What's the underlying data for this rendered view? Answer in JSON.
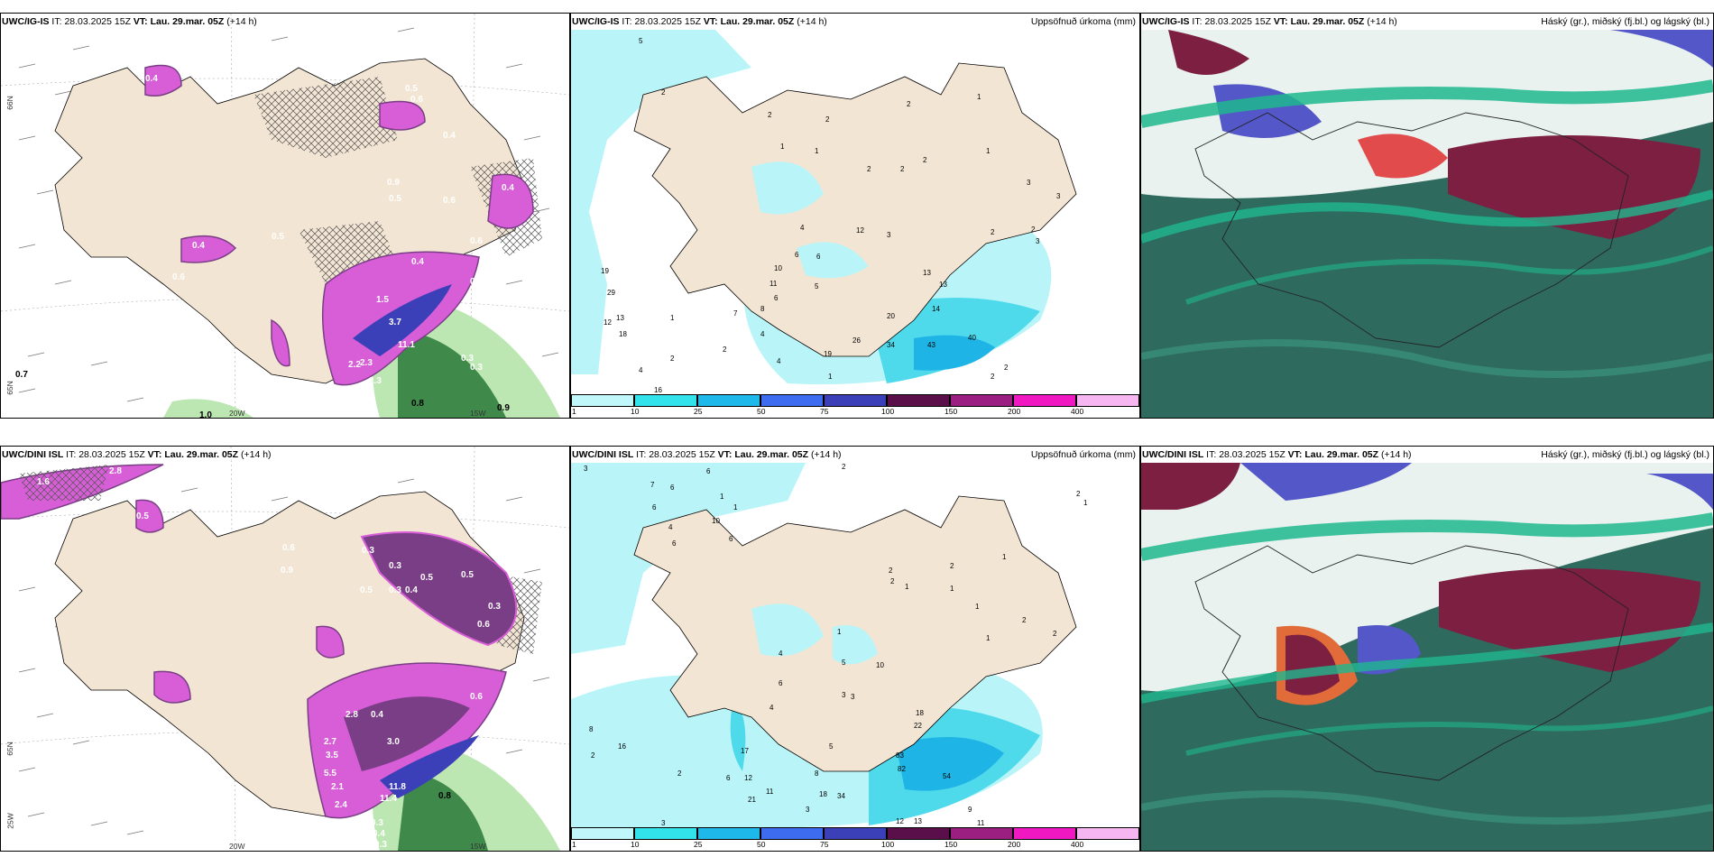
{
  "rows": [
    {
      "model": "UWC/IG-IS",
      "panels": [
        {
          "model_label": "UWC/IG-IS",
          "it_label": "IT:",
          "it_value": "28.03.2025 15Z",
          "vt_label": "VT:",
          "vt_value": "Lau. 29.mar. 05Z",
          "lead": "(+14 h)",
          "title_right": ""
        },
        {
          "model_label": "UWC/IG-IS",
          "it_label": "IT:",
          "it_value": "28.03.2025 15Z",
          "vt_label": "VT:",
          "vt_value": "Lau. 29.mar. 05Z",
          "lead": "(+14 h)",
          "title_right": "Uppsöfnuð úrkoma (mm)"
        },
        {
          "model_label": "UWC/IG-IS",
          "it_label": "IT:",
          "it_value": "28.03.2025 15Z",
          "vt_label": "VT:",
          "vt_value": "Lau. 29.mar. 05Z",
          "lead": "(+14 h)",
          "title_right": "Háský (gr.), miðský (fj.bl.) og lágský (bl.)"
        }
      ]
    },
    {
      "model": "UWC/DINI ISL",
      "panels": [
        {
          "model_label": "UWC/DINI ISL",
          "it_label": "IT:",
          "it_value": "28.03.2025 15Z",
          "vt_label": "VT:",
          "vt_value": "Lau. 29.mar. 05Z",
          "lead": "(+14 h)",
          "title_right": ""
        },
        {
          "model_label": "UWC/DINI ISL",
          "it_label": "IT:",
          "it_value": "28.03.2025 15Z",
          "vt_label": "VT:",
          "vt_value": "Lau. 29.mar. 05Z",
          "lead": "(+14 h)",
          "title_right": "Uppsöfnuð úrkoma (mm)"
        },
        {
          "model_label": "UWC/DINI ISL",
          "it_label": "IT:",
          "it_value": "28.03.2025 15Z",
          "vt_label": "VT:",
          "vt_value": "Lau. 29.mar. 05Z",
          "lead": "(+14 h)",
          "title_right": "Háský (gr.), miðský (fj.bl.) og lágský (bl.)"
        }
      ]
    }
  ],
  "grid_labels": {
    "lat_66": "66N",
    "lat_65": "65N",
    "lon_20": "20W",
    "lon_15": "15W",
    "lon_25": "25W"
  },
  "colorbar": {
    "labels": [
      "1",
      "10",
      "25",
      "50",
      "75",
      "100",
      "150",
      "200",
      "400"
    ],
    "colors": [
      "#bff7fa",
      "#33e3ec",
      "#1fb8ea",
      "#3d6cf0",
      "#3b3fb8",
      "#5a0f4a",
      "#9b1f80",
      "#f018c0",
      "#f6b6f2"
    ]
  },
  "map_colors": {
    "land": "#f3e5d3",
    "precip_light": "#b9f5f8",
    "precip_mid": "#4fdaeb",
    "precip_high": "#1fb4e6",
    "snow_pink": "#d85ed8",
    "snow_dark": "#7a3e86",
    "rain_green": "#3f8a4a",
    "rain_light": "#bde7b2",
    "cloud_dark": "#2e6a5e",
    "cloud_green": "#1fb88e",
    "cloud_red": "#7c1f40",
    "cloud_blue": "#5357c8"
  },
  "precip_values_top": [
    "5",
    "2",
    "2",
    "2",
    "2",
    "1",
    "1",
    "2",
    "2",
    "2",
    "2",
    "1",
    "1",
    "1",
    "1",
    "1",
    "1",
    "1",
    "2",
    "2",
    "2",
    "3",
    "3",
    "3",
    "3",
    "3",
    "2",
    "12",
    "4",
    "6",
    "6",
    "6",
    "10",
    "11",
    "6",
    "5",
    "7",
    "8",
    "4",
    "2",
    "4",
    "13",
    "13",
    "14",
    "20",
    "26",
    "34",
    "43",
    "40",
    "19",
    "29",
    "12",
    "13",
    "18",
    "1",
    "2",
    "4",
    "16",
    "1",
    "2",
    "2",
    "2"
  ],
  "precip_values_bottom": [
    "3",
    "7",
    "6",
    "6",
    "1",
    "1",
    "4",
    "6",
    "6",
    "10",
    "6",
    "2",
    "2",
    "1",
    "2",
    "2",
    "1",
    "1",
    "2",
    "2",
    "2",
    "2",
    "2",
    "2",
    "1",
    "1",
    "1",
    "1",
    "1",
    "4",
    "5",
    "10",
    "6",
    "3",
    "3",
    "4",
    "5",
    "16",
    "8",
    "2",
    "2",
    "17",
    "5",
    "12",
    "11",
    "21",
    "18",
    "34",
    "3",
    "8",
    "83",
    "82",
    "54",
    "9",
    "11",
    "12",
    "13",
    "22",
    "18",
    "3",
    "2",
    "1"
  ],
  "snow_values_top": [
    "0.5",
    "0.6",
    "0.4",
    "0.9",
    "0.5",
    "0.6",
    "0.5",
    "0.6",
    "0.4",
    "1.5",
    "2.3",
    "3.7",
    "11.1",
    "2.2",
    "2.3",
    "0.4",
    "0.3",
    "0.8",
    "0.9",
    "1.0",
    "0.7",
    "0.6",
    "0.4",
    "0.4",
    "0.3"
  ],
  "snow_values_bottom": [
    "1.6",
    "2.8",
    "0.5",
    "0.9",
    "0.6",
    "0.5",
    "0.3",
    "0.4",
    "0.5",
    "0.3",
    "0.4",
    "0.8",
    "2.8",
    "2.7",
    "3.5",
    "5.5",
    "2.1",
    "2.4",
    "3.0",
    "11.8",
    "11.4",
    "0.8",
    "0.3",
    "0.4",
    "0.3",
    "0.6"
  ]
}
